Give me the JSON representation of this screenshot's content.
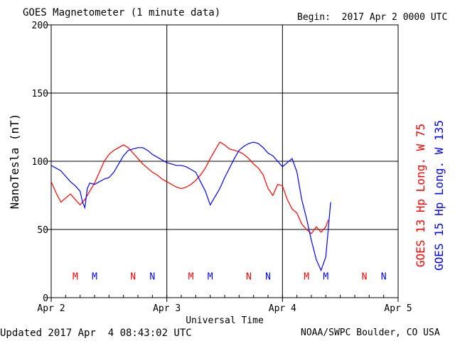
{
  "header": {
    "title": "GOES Magnetometer (1 minute data)",
    "begin": "Begin:  2017 Apr 2 0000 UTC"
  },
  "footer": {
    "updated": "Updated 2017 Apr  4 08:43:02 UTC",
    "credit": "NOAA/SWPC Boulder, CO USA"
  },
  "colors": {
    "goes13": "#ff0000",
    "goes15": "#0000ff"
  },
  "chart_data": {
    "type": "line",
    "xlabel": "Universal Time",
    "ylabel": "NanoTesla (nT)",
    "x_unit": "hours since Apr 2 0000 UTC",
    "xlim": [
      0,
      72
    ],
    "ylim": [
      0,
      200
    ],
    "yticks": [
      0,
      50,
      100,
      150,
      200
    ],
    "xticks": [
      {
        "x": 0,
        "label": "Apr 2"
      },
      {
        "x": 24,
        "label": "Apr 3"
      },
      {
        "x": 48,
        "label": "Apr 4"
      },
      {
        "x": 72,
        "label": "Apr 5"
      }
    ],
    "grid": true,
    "series": [
      {
        "name": "GOES 13 Hp  Long. W 75",
        "color": "#ff0000",
        "points": [
          [
            0,
            85
          ],
          [
            1,
            77
          ],
          [
            2,
            70
          ],
          [
            3,
            73
          ],
          [
            4,
            76
          ],
          [
            5,
            72
          ],
          [
            6,
            68
          ],
          [
            7,
            72
          ],
          [
            8,
            78
          ],
          [
            9,
            84
          ],
          [
            10,
            92
          ],
          [
            11,
            100
          ],
          [
            12,
            105
          ],
          [
            13,
            108
          ],
          [
            14,
            110
          ],
          [
            15,
            112
          ],
          [
            16,
            110
          ],
          [
            17,
            106
          ],
          [
            18,
            102
          ],
          [
            19,
            98
          ],
          [
            20,
            95
          ],
          [
            21,
            92
          ],
          [
            22,
            90
          ],
          [
            23,
            87
          ],
          [
            24,
            85
          ],
          [
            25,
            83
          ],
          [
            26,
            81
          ],
          [
            27,
            80
          ],
          [
            28,
            81
          ],
          [
            29,
            83
          ],
          [
            30,
            86
          ],
          [
            31,
            90
          ],
          [
            32,
            95
          ],
          [
            33,
            102
          ],
          [
            34,
            108
          ],
          [
            35,
            114
          ],
          [
            36,
            112
          ],
          [
            37,
            109
          ],
          [
            38,
            108
          ],
          [
            39,
            107
          ],
          [
            40,
            105
          ],
          [
            41,
            102
          ],
          [
            42,
            98
          ],
          [
            43,
            95
          ],
          [
            44,
            90
          ],
          [
            45,
            80
          ],
          [
            46,
            75
          ],
          [
            47,
            83
          ],
          [
            48,
            82
          ],
          [
            49,
            72
          ],
          [
            50,
            65
          ],
          [
            51,
            62
          ],
          [
            52,
            54
          ],
          [
            53,
            50
          ],
          [
            54,
            47
          ],
          [
            55,
            52
          ],
          [
            56,
            48
          ],
          [
            57,
            52
          ],
          [
            57.5,
            57
          ]
        ]
      },
      {
        "name": "GOES 15 Hp  Long. W 135",
        "color": "#0000ff",
        "points": [
          [
            0,
            97
          ],
          [
            1,
            95
          ],
          [
            2,
            93
          ],
          [
            3,
            89
          ],
          [
            4,
            85
          ],
          [
            5,
            82
          ],
          [
            6,
            78
          ],
          [
            6.5,
            70
          ],
          [
            7,
            66
          ],
          [
            7.5,
            80
          ],
          [
            8,
            84
          ],
          [
            9,
            83
          ],
          [
            10,
            85
          ],
          [
            11,
            87
          ],
          [
            12,
            88
          ],
          [
            13,
            92
          ],
          [
            14,
            98
          ],
          [
            15,
            104
          ],
          [
            16,
            108
          ],
          [
            17,
            109
          ],
          [
            18,
            110
          ],
          [
            19,
            110
          ],
          [
            20,
            108
          ],
          [
            21,
            105
          ],
          [
            22,
            103
          ],
          [
            23,
            101
          ],
          [
            24,
            99
          ],
          [
            25,
            98
          ],
          [
            26,
            97
          ],
          [
            27,
            97
          ],
          [
            28,
            96
          ],
          [
            29,
            94
          ],
          [
            30,
            92
          ],
          [
            31,
            85
          ],
          [
            32,
            78
          ],
          [
            33,
            68
          ],
          [
            34,
            74
          ],
          [
            35,
            80
          ],
          [
            36,
            88
          ],
          [
            37,
            95
          ],
          [
            38,
            102
          ],
          [
            39,
            108
          ],
          [
            40,
            111
          ],
          [
            41,
            113
          ],
          [
            42,
            114
          ],
          [
            43,
            113
          ],
          [
            44,
            110
          ],
          [
            45,
            106
          ],
          [
            46,
            104
          ],
          [
            47,
            100
          ],
          [
            48,
            96
          ],
          [
            49,
            99
          ],
          [
            50,
            102
          ],
          [
            51,
            92
          ],
          [
            52,
            72
          ],
          [
            53,
            58
          ],
          [
            54,
            42
          ],
          [
            55,
            28
          ],
          [
            56,
            20
          ],
          [
            57,
            30
          ],
          [
            57.5,
            50
          ],
          [
            58,
            70
          ]
        ]
      }
    ],
    "markers": [
      {
        "label": "M",
        "x": 5,
        "color": "#ff0000"
      },
      {
        "label": "M",
        "x": 9,
        "color": "#0000ff"
      },
      {
        "label": "N",
        "x": 17,
        "color": "#ff0000"
      },
      {
        "label": "N",
        "x": 21,
        "color": "#0000ff"
      },
      {
        "label": "M",
        "x": 29,
        "color": "#ff0000"
      },
      {
        "label": "M",
        "x": 33,
        "color": "#0000ff"
      },
      {
        "label": "N",
        "x": 41,
        "color": "#ff0000"
      },
      {
        "label": "N",
        "x": 45,
        "color": "#0000ff"
      },
      {
        "label": "M",
        "x": 53,
        "color": "#ff0000"
      },
      {
        "label": "M",
        "x": 57,
        "color": "#0000ff"
      },
      {
        "label": "N",
        "x": 65,
        "color": "#ff0000"
      },
      {
        "label": "N",
        "x": 69,
        "color": "#0000ff"
      }
    ]
  }
}
